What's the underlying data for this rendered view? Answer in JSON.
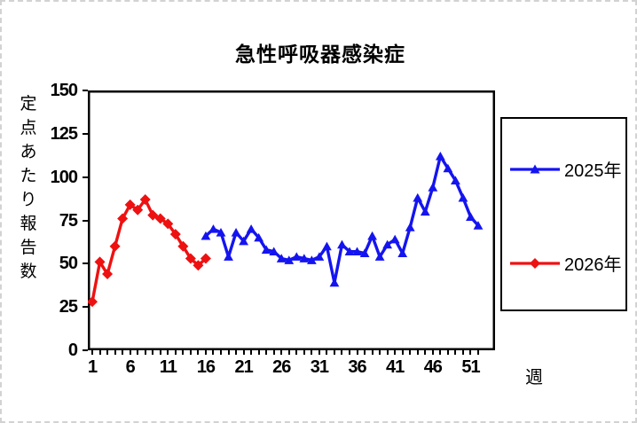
{
  "canvas": {
    "background": "#ffffff",
    "outer_border_color": "#d2d2d2"
  },
  "chart_data": {
    "type": "line",
    "title": "急性呼吸器感染症",
    "xlabel": "週",
    "ylabel": "定点あたり報告数",
    "ylabel_chars": [
      "定",
      "点",
      "あ",
      "た",
      "り",
      "報",
      "告",
      "数"
    ],
    "x_tick_labels": [
      1,
      6,
      11,
      16,
      21,
      26,
      31,
      36,
      41,
      46,
      51
    ],
    "y_tick_labels": [
      150,
      125,
      100,
      75,
      50,
      25,
      0
    ],
    "x_range": [
      1,
      52
    ],
    "ylim": [
      0,
      150
    ],
    "grid": false,
    "legend_position": "right",
    "plot_border_color": "#000000",
    "series": [
      {
        "name": "2025年",
        "color": "#1414f0",
        "marker": "triangle",
        "x": [
          16,
          17,
          18,
          19,
          20,
          21,
          22,
          23,
          24,
          25,
          26,
          27,
          28,
          29,
          30,
          31,
          32,
          33,
          34,
          35,
          36,
          37,
          38,
          39,
          40,
          41,
          42,
          43,
          44,
          45,
          46,
          47,
          48,
          49,
          50,
          51,
          52
        ],
        "values": [
          66,
          70,
          68,
          54,
          68,
          63,
          70,
          65,
          58,
          57,
          53,
          52,
          54,
          53,
          52,
          54,
          60,
          39,
          61,
          57,
          57,
          56,
          66,
          54,
          61,
          64,
          56,
          71,
          88,
          80,
          94,
          112,
          105,
          98,
          88,
          77,
          72
        ]
      },
      {
        "name": "2026年",
        "color": "#ee1111",
        "marker": "diamond",
        "x": [
          1,
          2,
          3,
          4,
          5,
          6,
          7,
          8,
          9,
          10,
          11,
          12,
          13,
          14,
          15,
          16
        ],
        "values": [
          28,
          51,
          44,
          60,
          76,
          84,
          81,
          87,
          78,
          76,
          73,
          67,
          60,
          53,
          49,
          53
        ]
      }
    ]
  }
}
